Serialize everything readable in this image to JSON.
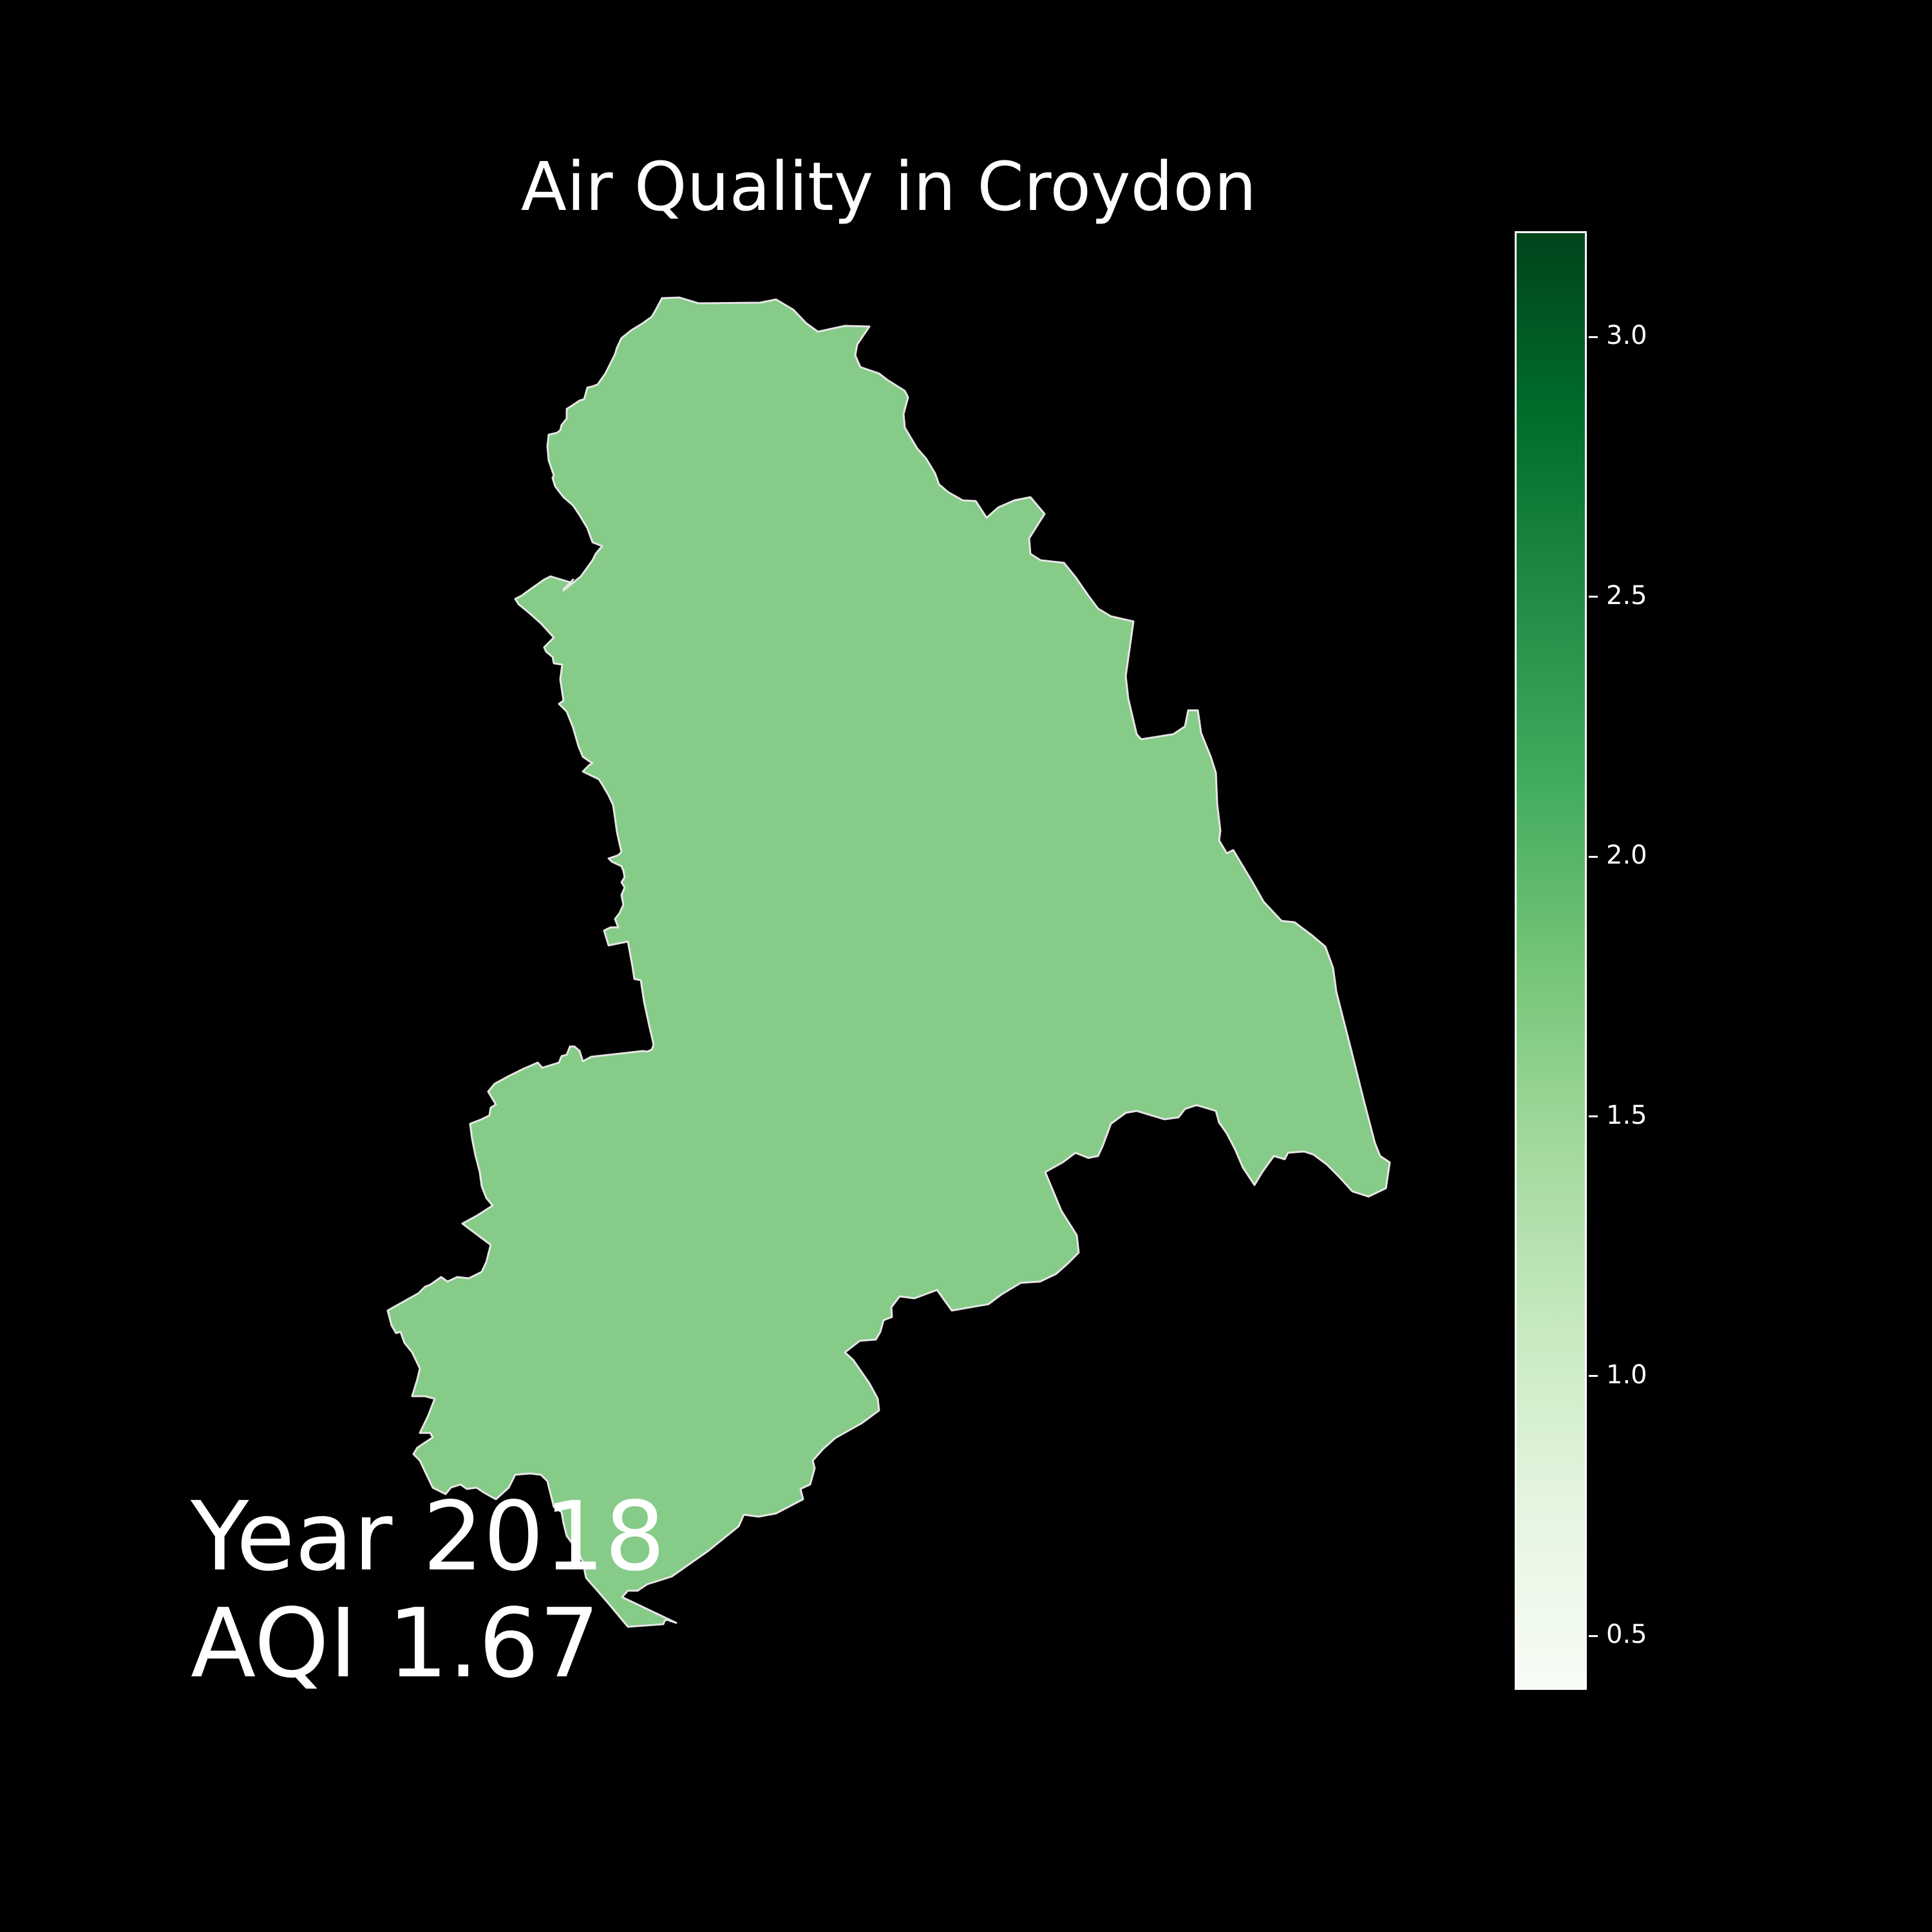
{
  "title": "Air Quality in Croydon",
  "year_text": "Year 2018",
  "aqi_text": "AQI 1.67",
  "map": {
    "region": "Croydon",
    "value": 1.67,
    "fill_color": "#86cb87",
    "edge_color": "#e6e6e6",
    "background_color": "#000000"
  },
  "colorbar": {
    "min": 0.4,
    "max": 3.2,
    "ticks": [
      "0.5",
      "1.0",
      "1.5",
      "2.0",
      "2.5",
      "3.0"
    ],
    "colormap": "Greens",
    "stops": [
      "#f7fcf5",
      "#e5f5e0",
      "#c7e9c0",
      "#a1d99b",
      "#74c476",
      "#41ab5d",
      "#238b45",
      "#006d2c",
      "#00441b"
    ]
  }
}
